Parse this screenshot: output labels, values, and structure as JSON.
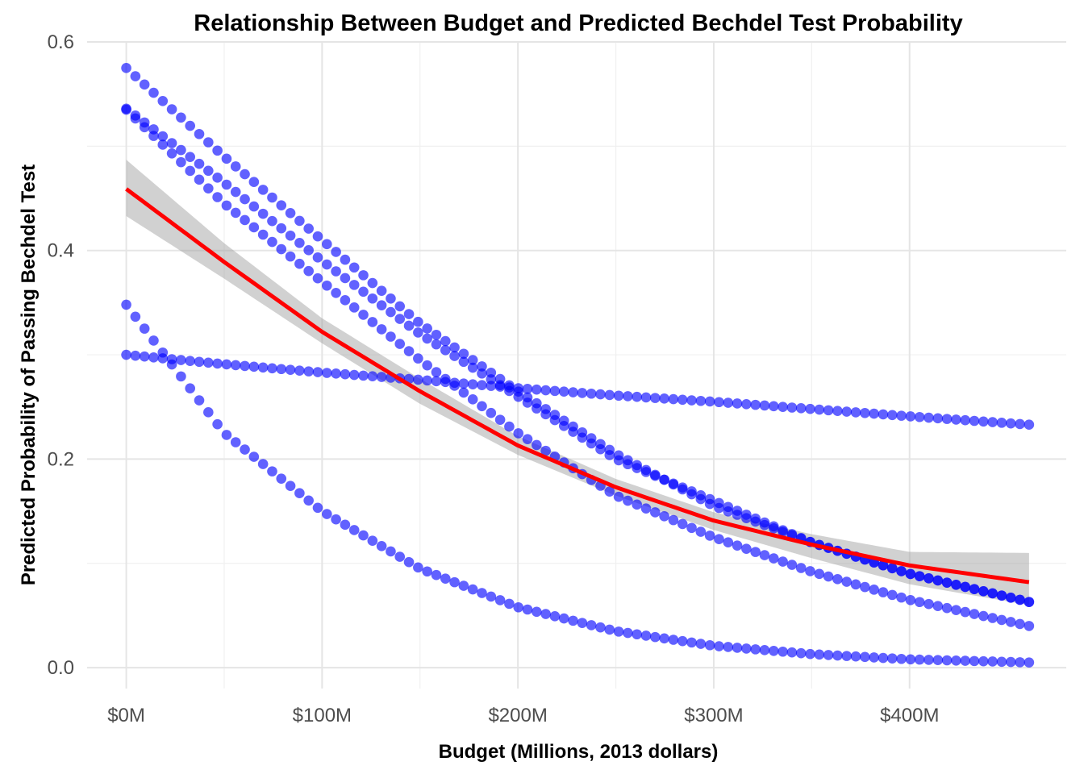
{
  "chart_data": {
    "type": "scatter",
    "title": "Relationship Between Budget and Predicted Bechdel Test Probability",
    "xlabel": "Budget (Millions, 2013 dollars)",
    "ylabel": "Predicted Probability of Passing Bechdel Test",
    "xlim": [
      -20,
      480
    ],
    "ylim": [
      -0.02,
      0.6
    ],
    "x_ticks": [
      0,
      100,
      200,
      300,
      400
    ],
    "x_tick_labels": [
      "$0M",
      "$100M",
      "$200M",
      "$300M",
      "$400M"
    ],
    "y_ticks": [
      0,
      0.2,
      0.4,
      0.6
    ],
    "y_tick_labels": [
      "0.0",
      "0.2",
      "0.4",
      "0.6"
    ],
    "grid": true,
    "colors": {
      "points": "#0000ff",
      "fit_line": "#ff0000",
      "ribbon": "#999999"
    },
    "point_curves": {
      "x_start": 0,
      "x_end": 461,
      "points_per_curve": 100,
      "curves": [
        {
          "x": [
            0,
            50,
            100,
            150,
            200,
            250,
            300,
            350,
            400,
            461
          ],
          "y": [
            0.575,
            0.49,
            0.41,
            0.33,
            0.265,
            0.205,
            0.155,
            0.12,
            0.09,
            0.063
          ]
        },
        {
          "x": [
            0,
            50,
            100,
            150,
            200,
            250,
            300,
            350,
            400,
            461
          ],
          "y": [
            0.536,
            0.465,
            0.39,
            0.32,
            0.26,
            0.2,
            0.16,
            0.12,
            0.09,
            0.063
          ]
        },
        {
          "x": [
            0,
            50,
            100,
            150,
            200,
            250,
            300,
            350,
            400,
            461
          ],
          "y": [
            0.535,
            0.445,
            0.37,
            0.295,
            0.225,
            0.165,
            0.125,
            0.092,
            0.065,
            0.04
          ]
        },
        {
          "x": [
            0,
            50,
            100,
            150,
            200,
            250,
            300,
            350,
            400,
            461
          ],
          "y": [
            0.3,
            0.291,
            0.283,
            0.276,
            0.268,
            0.261,
            0.255,
            0.248,
            0.241,
            0.233
          ]
        },
        {
          "x": [
            0,
            50,
            100,
            150,
            200,
            250,
            300,
            350,
            400,
            461
          ],
          "y": [
            0.348,
            0.225,
            0.15,
            0.095,
            0.058,
            0.035,
            0.021,
            0.013,
            0.008,
            0.005
          ]
        }
      ]
    },
    "fit_line": {
      "x": [
        0,
        50,
        100,
        150,
        200,
        250,
        300,
        350,
        400,
        461
      ],
      "y": [
        0.459,
        0.389,
        0.322,
        0.265,
        0.213,
        0.173,
        0.141,
        0.118,
        0.098,
        0.082
      ],
      "ci_lower": [
        0.433,
        0.373,
        0.311,
        0.253,
        0.204,
        0.165,
        0.132,
        0.105,
        0.08,
        0.06
      ],
      "ci_upper": [
        0.487,
        0.407,
        0.335,
        0.277,
        0.222,
        0.181,
        0.149,
        0.128,
        0.111,
        0.11
      ]
    }
  }
}
